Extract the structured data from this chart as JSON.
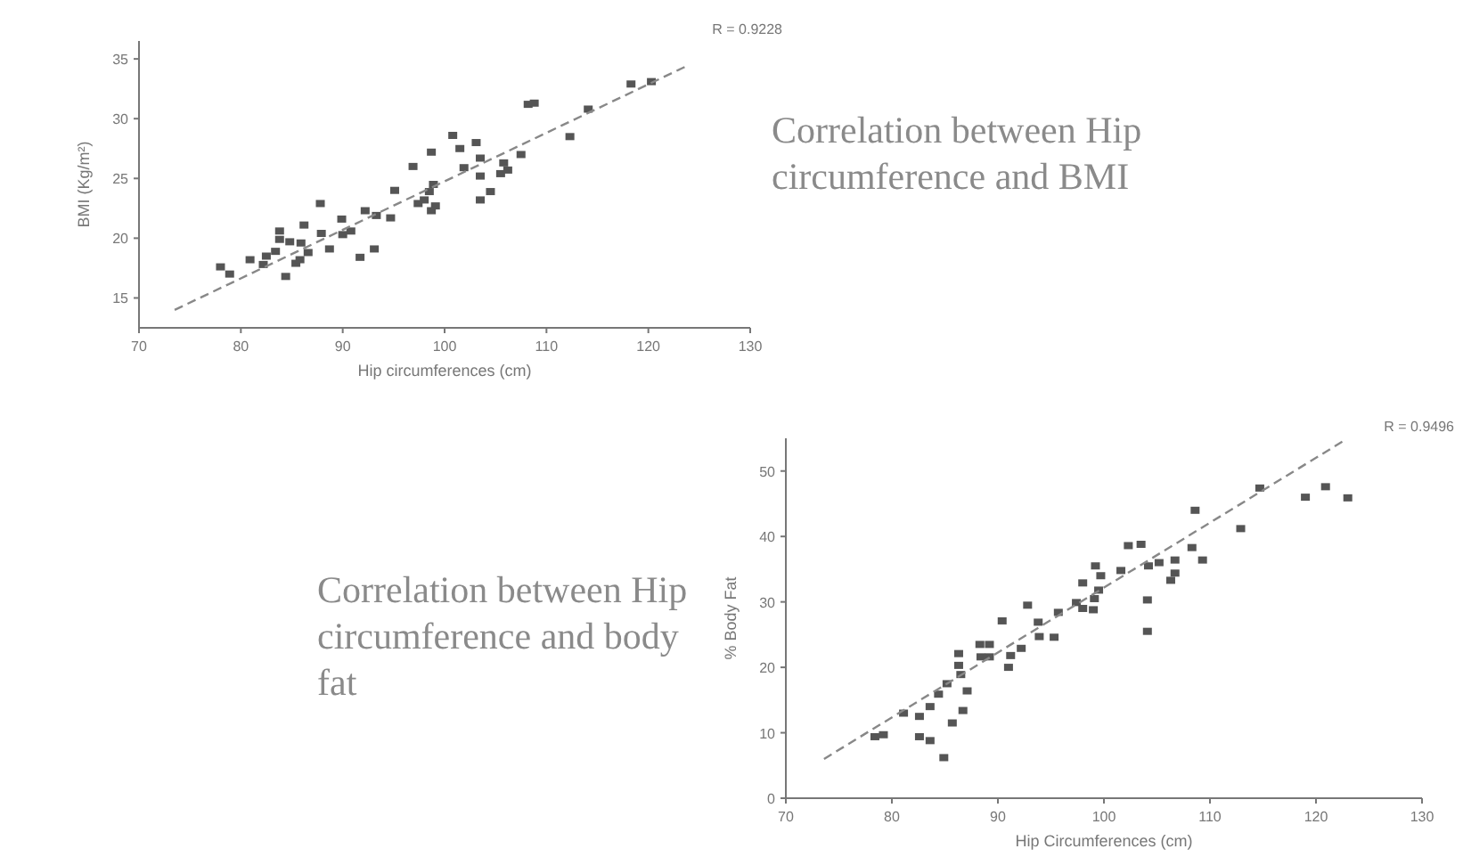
{
  "chart_data": [
    {
      "type": "scatter",
      "title": "Correlation between Hip circumference and BMI",
      "xlabel": "Hip circumferences (cm)",
      "ylabel": "BMI (Kg/m²)",
      "annotations": [
        "R = 0.9228"
      ],
      "xlim": [
        70,
        130
      ],
      "ylim": [
        12.5,
        36.5
      ],
      "xticks": [
        70,
        80,
        90,
        100,
        110,
        120,
        130
      ],
      "yticks": [
        15,
        20,
        25,
        30,
        35
      ],
      "series": [
        {
          "type": "scatter",
          "marker": "square",
          "color": "#555555",
          "x": [
            78.0,
            78.9,
            80.9,
            82.2,
            82.5,
            83.4,
            83.8,
            83.8,
            84.8,
            84.4,
            85.4,
            85.8,
            85.9,
            86.2,
            86.6,
            87.8,
            87.9,
            88.7,
            89.9,
            90.0,
            90.8,
            91.7,
            92.2,
            93.1,
            93.3,
            94.7,
            95.1,
            96.9,
            97.4,
            98.0,
            98.5,
            98.7,
            98.9,
            98.7,
            99.1,
            100.8,
            101.5,
            101.9,
            103.1,
            103.5,
            103.5,
            103.5,
            104.5,
            105.5,
            105.8,
            106.2,
            107.5,
            108.2,
            108.8,
            112.3,
            114.1,
            118.3,
            120.3
          ],
          "values": [
            17.6,
            17.0,
            18.2,
            17.8,
            18.5,
            18.9,
            20.6,
            19.9,
            19.7,
            16.8,
            17.9,
            18.2,
            19.6,
            21.1,
            18.8,
            22.9,
            20.4,
            19.1,
            21.6,
            20.3,
            20.6,
            18.4,
            22.3,
            19.1,
            21.9,
            21.7,
            24.0,
            26.0,
            22.9,
            23.2,
            23.9,
            27.2,
            24.5,
            22.3,
            22.7,
            28.6,
            27.5,
            25.9,
            28.0,
            26.7,
            25.2,
            23.2,
            23.9,
            25.4,
            26.3,
            25.7,
            27.0,
            31.2,
            31.3,
            28.5,
            30.8,
            32.9,
            33.1
          ]
        },
        {
          "type": "line",
          "line_style": "dashed",
          "color": "#888888",
          "x": [
            73.5,
            124
          ],
          "values": [
            14,
            34.5
          ]
        }
      ]
    },
    {
      "type": "scatter",
      "title": "Correlation between Hip circumference and body fat",
      "xlabel": "Hip Circumferences (cm)",
      "ylabel": "% Body Fat",
      "annotations": [
        "R = 0.9496"
      ],
      "xlim": [
        70,
        130
      ],
      "ylim": [
        0,
        55
      ],
      "xticks": [
        70,
        80,
        90,
        100,
        110,
        120,
        130
      ],
      "yticks": [
        0,
        10,
        20,
        30,
        40,
        50
      ],
      "series": [
        {
          "type": "scatter",
          "marker": "square",
          "color": "#555555",
          "x": [
            78.4,
            79.2,
            81.1,
            82.6,
            82.6,
            83.6,
            83.6,
            84.4,
            84.9,
            85.2,
            85.7,
            86.3,
            86.3,
            86.5,
            86.7,
            87.1,
            88.3,
            88.4,
            89.2,
            89.2,
            90.4,
            91.0,
            91.2,
            92.2,
            92.8,
            93.8,
            93.9,
            95.3,
            95.7,
            97.4,
            98.0,
            98.0,
            99.0,
            99.1,
            99.2,
            99.5,
            99.7,
            101.6,
            102.3,
            103.5,
            104.1,
            104.1,
            104.2,
            105.2,
            106.3,
            106.7,
            106.7,
            108.3,
            108.6,
            109.3,
            112.9,
            114.7,
            119.0,
            120.9,
            123.0
          ],
          "values": [
            9.4,
            9.7,
            13.0,
            12.5,
            9.4,
            14.0,
            8.8,
            15.9,
            6.2,
            17.5,
            11.5,
            22.1,
            20.3,
            18.9,
            13.4,
            16.4,
            23.5,
            21.6,
            23.5,
            21.6,
            27.1,
            20.0,
            21.8,
            22.9,
            29.5,
            26.9,
            24.7,
            24.6,
            28.4,
            29.9,
            32.9,
            29.0,
            28.8,
            30.5,
            35.5,
            31.8,
            34.0,
            34.8,
            38.6,
            38.8,
            30.3,
            25.5,
            35.5,
            36.0,
            33.3,
            36.4,
            34.4,
            38.3,
            44.0,
            36.4,
            41.2,
            47.4,
            46.0,
            47.6,
            45.9
          ]
        },
        {
          "type": "line",
          "line_style": "dashed",
          "color": "#888888",
          "x": [
            73.6,
            122.5
          ],
          "values": [
            6,
            54.5
          ]
        }
      ]
    }
  ]
}
